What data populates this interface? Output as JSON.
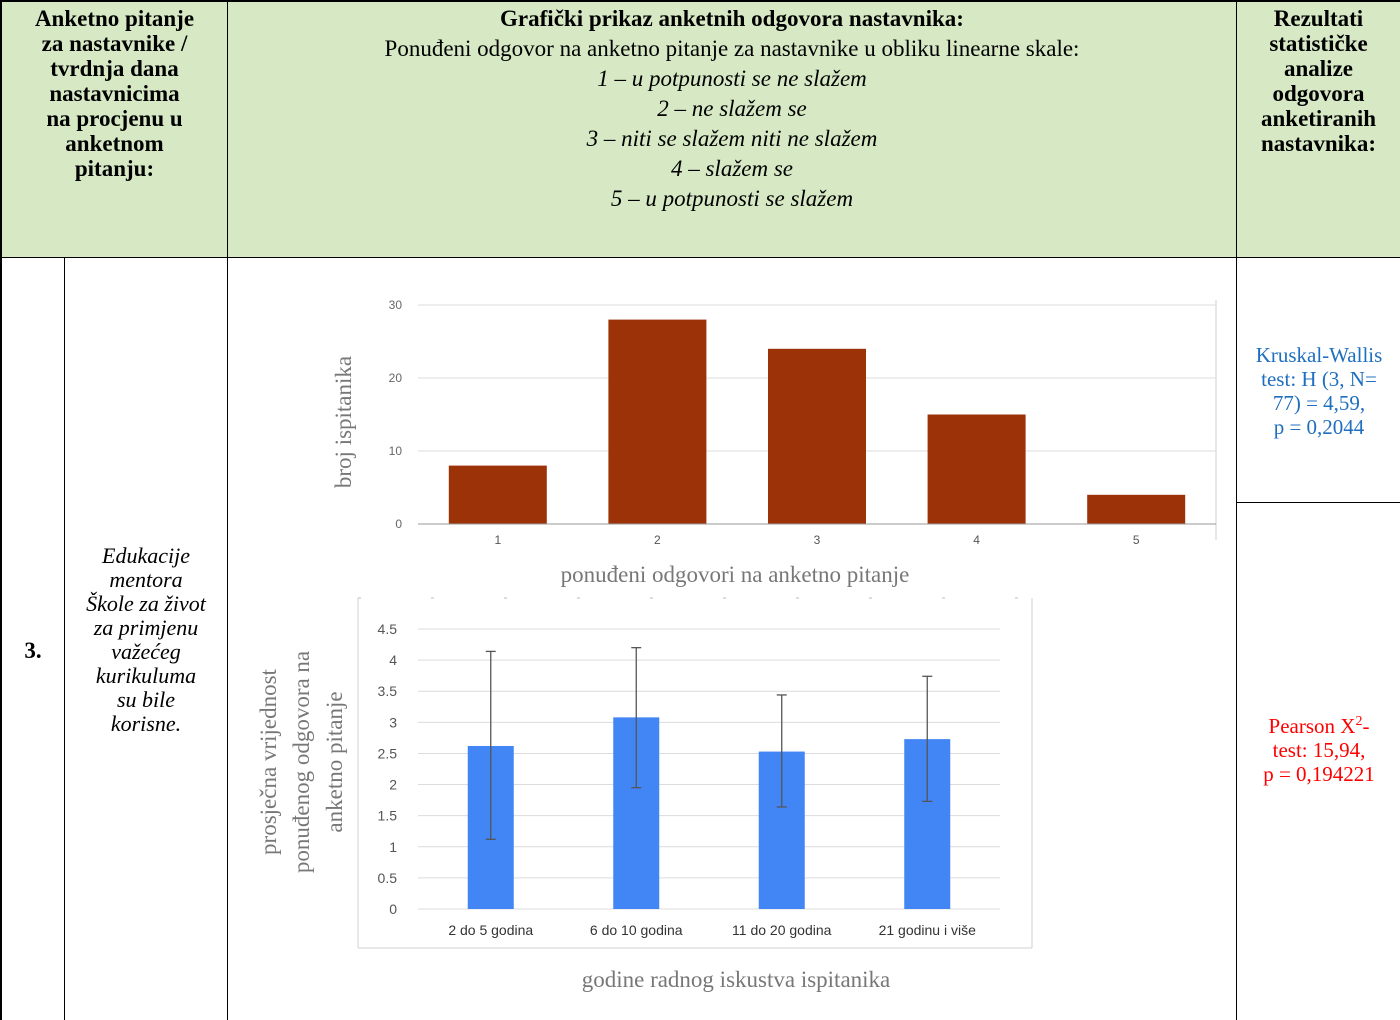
{
  "header": {
    "question_col": [
      "Anketno pitanje",
      "za nastavnike /",
      "tvrdnja dana",
      "nastavnicima",
      "na procjenu u",
      "anketnom",
      "pitanju:"
    ],
    "graph_title": "Grafički prikaz anketnih odgovora nastavnika:",
    "graph_subtitle": "Ponuđeni odgovor na anketno pitanje za nastavnike u obliku linearne skale:",
    "scale": [
      "1 – u potpunosti se ne slažem",
      "2 – ne slažem se",
      "3 – niti se slažem niti ne slažem",
      "4 – slažem se",
      "5 – u potpunosti se slažem"
    ],
    "results_col": [
      "Rezultati",
      "statističke",
      "analize",
      "odgovora",
      "anketiranih",
      "nastavnika:"
    ]
  },
  "row": {
    "number": "3.",
    "statement": [
      "Edukacije",
      "mentora",
      "Škole za život",
      "za primjenu",
      "važećeg",
      "kurikuluma",
      "su bile",
      "korisne."
    ],
    "kruskal": [
      "Kruskal-Wallis",
      "test: H (3, N=",
      "77) = 4,59,",
      "p = 0,2044"
    ],
    "pearson_line1": "Pearson X",
    "pearson_sup": "2",
    "pearson_dash": "-",
    "pearson_rest": [
      "test: 15,94,",
      "p = 0,194221"
    ]
  },
  "colors": {
    "header_bg": "#d6e8c4",
    "bar1": "#9c3207",
    "bar2": "#4285f4",
    "kruskal_text": "#1f6fc0",
    "pearson_text": "#ff0000"
  },
  "chart_data": [
    {
      "type": "bar",
      "categories": [
        "1",
        "2",
        "3",
        "4",
        "5"
      ],
      "values": [
        8,
        28,
        24,
        15,
        4
      ],
      "ylim": [
        0,
        30
      ],
      "yticks": [
        "0",
        "10",
        "20",
        "30"
      ],
      "ylabel": "broj ispitanika",
      "xlabel": "ponuđeni odgovori na anketno pitanje",
      "grid": true
    },
    {
      "type": "bar",
      "categories": [
        "2 do 5 godina",
        "6 do 10 godina",
        "11 do 20 godina",
        "21 godinu i više"
      ],
      "values": [
        2.62,
        3.08,
        2.53,
        2.73
      ],
      "error_low": [
        1.12,
        1.95,
        1.64,
        1.73
      ],
      "error_high": [
        4.14,
        4.2,
        3.44,
        3.74
      ],
      "ylim": [
        0,
        4.5
      ],
      "yticks": [
        "0",
        "0.5",
        "1",
        "1.5",
        "2",
        "2.5",
        "3",
        "3.5",
        "4",
        "4.5"
      ],
      "ylabel": [
        "prosječna vrijednost",
        "ponuđenog odgovora na",
        "anketno pitanje"
      ],
      "xlabel": "godine radnog iskustva ispitanika",
      "grid": true
    }
  ]
}
